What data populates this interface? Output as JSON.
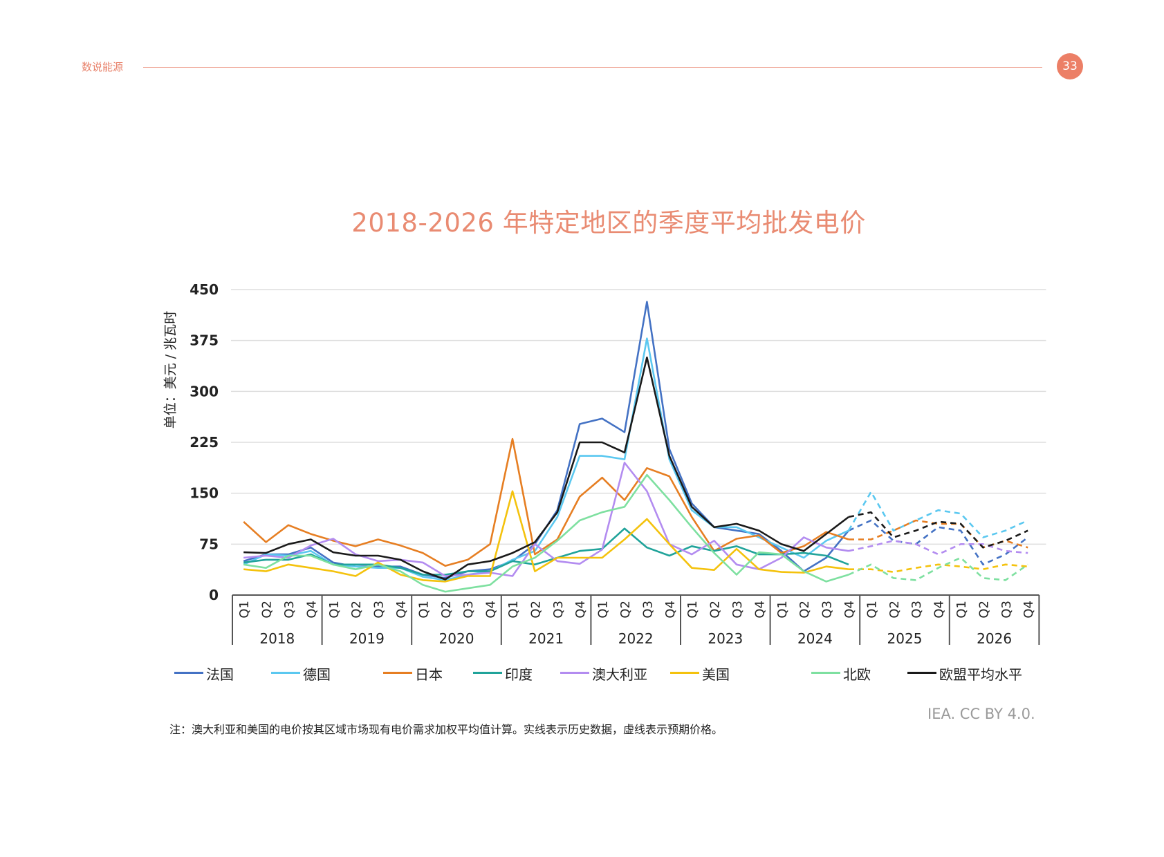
{
  "header": {
    "section_label": "数说能源",
    "page_number": "33"
  },
  "source": "IEA. CC BY 4.0.",
  "note": "注：澳大利亚和美国的电价按其区域市场现有电价需求加权平均值计算。实线表示历史数据，虚线表示预期价格。",
  "chart_data": {
    "type": "line",
    "title": "2018-2026 年特定地区的季度平均批发电价",
    "ylabel": "单位：美元 / 兆瓦时",
    "ylim": [
      0,
      450
    ],
    "yticks": [
      0,
      75,
      150,
      225,
      300,
      375,
      450
    ],
    "grid": true,
    "legend_position": "bottom",
    "quarters": [
      "Q1",
      "Q2",
      "Q3",
      "Q4"
    ],
    "years": [
      "2018",
      "2019",
      "2020",
      "2021",
      "2022",
      "2023",
      "2024",
      "2025",
      "2026"
    ],
    "historical_points": 28,
    "series": [
      {
        "name": "法国",
        "color": "#4472c4",
        "values": [
          50,
          60,
          60,
          70,
          48,
          42,
          42,
          42,
          30,
          25,
          35,
          38,
          50,
          75,
          125,
          252,
          260,
          240,
          432,
          215,
          135,
          100,
          95,
          90,
          65,
          35,
          55,
          95,
          110,
          80,
          75,
          100,
          95,
          45,
          60,
          85
        ]
      },
      {
        "name": "德国",
        "color": "#5bc8f0",
        "values": [
          45,
          60,
          58,
          65,
          45,
          42,
          40,
          40,
          27,
          22,
          30,
          35,
          52,
          65,
          115,
          205,
          205,
          200,
          378,
          200,
          125,
          100,
          100,
          85,
          70,
          55,
          80,
          95,
          152,
          95,
          110,
          125,
          120,
          85,
          95,
          110
        ]
      },
      {
        "name": "日本",
        "color": "#e67e22",
        "values": [
          108,
          78,
          103,
          90,
          80,
          72,
          82,
          73,
          62,
          43,
          52,
          75,
          230,
          60,
          82,
          145,
          173,
          140,
          187,
          175,
          115,
          65,
          83,
          88,
          62,
          72,
          93,
          82,
          82,
          95,
          110,
          105,
          105,
          70,
          80,
          70
        ]
      },
      {
        "name": "印度",
        "color": "#20a39a",
        "values": [
          48,
          52,
          52,
          60,
          45,
          45,
          45,
          40,
          30,
          30,
          35,
          35,
          50,
          45,
          55,
          65,
          68,
          98,
          70,
          58,
          72,
          65,
          72,
          60,
          60,
          62,
          58,
          45
        ]
      },
      {
        "name": "澳大利亚",
        "color": "#b38cf0",
        "values": [
          55,
          58,
          55,
          73,
          83,
          60,
          50,
          52,
          48,
          28,
          30,
          33,
          28,
          75,
          50,
          46,
          67,
          195,
          153,
          75,
          60,
          80,
          45,
          38,
          55,
          85,
          70,
          65,
          72,
          80,
          75,
          60,
          75,
          75,
          65,
          62
        ]
      },
      {
        "name": "美国",
        "color": "#f4c20d",
        "values": [
          38,
          35,
          45,
          40,
          35,
          28,
          48,
          30,
          22,
          20,
          28,
          28,
          153,
          35,
          55,
          55,
          55,
          82,
          112,
          75,
          40,
          37,
          68,
          38,
          34,
          33,
          42,
          38,
          38,
          34,
          40,
          45,
          42,
          38,
          45,
          42
        ]
      },
      {
        "name": "北欧",
        "color": "#7ee0a0",
        "values": [
          45,
          40,
          58,
          58,
          45,
          38,
          45,
          35,
          15,
          5,
          10,
          15,
          42,
          55,
          80,
          110,
          122,
          130,
          177,
          140,
          100,
          62,
          30,
          63,
          60,
          35,
          20,
          30,
          45,
          25,
          22,
          40,
          55,
          25,
          22,
          45
        ]
      },
      {
        "name": "欧盟平均水平",
        "color": "#1a1a1a",
        "values": [
          63,
          62,
          75,
          82,
          63,
          58,
          58,
          52,
          35,
          23,
          45,
          50,
          62,
          78,
          122,
          225,
          225,
          210,
          350,
          205,
          130,
          100,
          105,
          95,
          75,
          65,
          90,
          115,
          122,
          85,
          95,
          108,
          105,
          70,
          80,
          95
        ]
      }
    ]
  }
}
